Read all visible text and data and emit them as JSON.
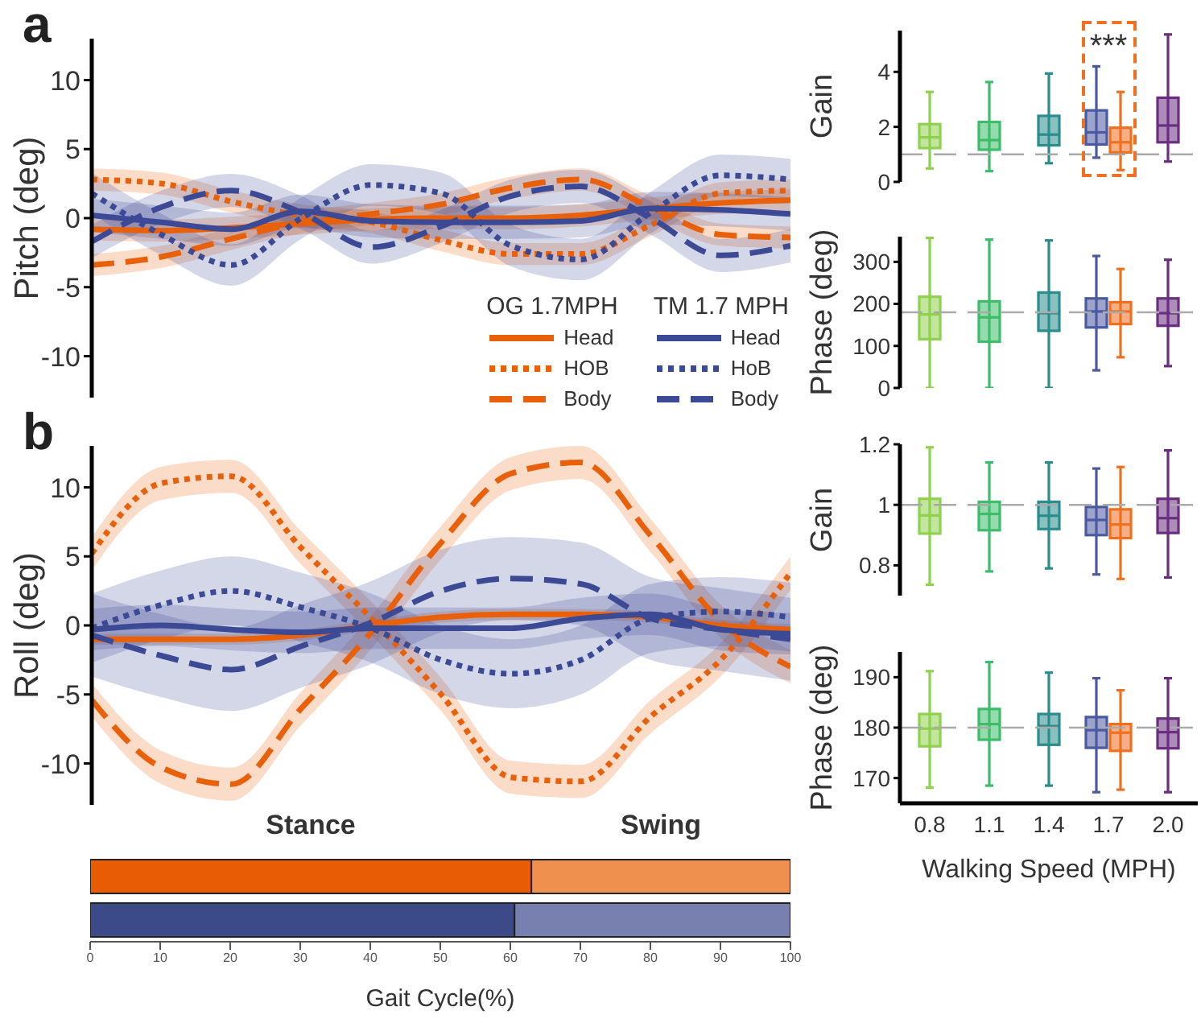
{
  "chart_data": [
    {
      "type": "line",
      "ylabel": "Pitch (deg)",
      "annotations": [
        "a"
      ],
      "x": [
        0,
        10,
        20,
        30,
        40,
        50,
        60,
        70,
        80,
        90,
        100
      ],
      "xlim": [
        0,
        100
      ],
      "ylim": [
        -13,
        13
      ],
      "yticks": [
        -10,
        -5,
        0,
        5,
        10
      ],
      "tick_labels": "y",
      "legend": "bottom right",
      "legend_title": [
        "OG 1.7MPH",
        "TM 1.7 MPH"
      ],
      "series": [
        {
          "name": "Head",
          "color": "#e8600a",
          "line_style": "solid",
          "values": [
            -0.8,
            -0.9,
            -0.7,
            -0.4,
            -0.1,
            0,
            0,
            0.2,
            0.7,
            1.1,
            1.3
          ],
          "lower": [
            -1.6,
            -1.7,
            -1.5,
            -1.2,
            -0.9,
            -0.8,
            -0.8,
            -0.6,
            -0.1,
            0.3,
            0.5
          ],
          "upper": [
            0,
            -0.1,
            0.1,
            0.4,
            0.7,
            0.8,
            0.8,
            1.0,
            1.5,
            1.9,
            2.1
          ]
        },
        {
          "name": "HOB",
          "color": "#e8600a",
          "line_style": "dotted",
          "values": [
            2.8,
            2.5,
            1.2,
            0.2,
            -0.3,
            -1.6,
            -2.6,
            -2.6,
            -0.5,
            1.8,
            2.0
          ],
          "lower": [
            2.0,
            1.7,
            0.4,
            -0.6,
            -1.1,
            -2.4,
            -3.4,
            -3.4,
            -1.3,
            1.0,
            1.2
          ],
          "upper": [
            3.6,
            3.3,
            2.0,
            1.0,
            0.5,
            -0.8,
            -1.8,
            -1.8,
            0.3,
            2.6,
            2.8
          ]
        },
        {
          "name": "Body",
          "color": "#e8600a",
          "line_style": "dashed",
          "values": [
            -3.4,
            -2.8,
            -1.5,
            -0.3,
            0.3,
            1.0,
            2.2,
            2.8,
            0.8,
            -1.2,
            -1.4
          ],
          "lower": [
            -4.2,
            -3.6,
            -2.3,
            -1.1,
            -0.5,
            0.2,
            1.4,
            2.0,
            0,
            -2.0,
            -2.2
          ],
          "upper": [
            -2.6,
            -2.0,
            -0.7,
            0.5,
            1.1,
            1.8,
            3.0,
            3.6,
            1.6,
            -0.4,
            -0.6
          ]
        },
        {
          "name": "Head",
          "color": "#3c4a96",
          "line_style": "solid",
          "values": [
            0.2,
            -0.3,
            -0.8,
            0.5,
            -0.2,
            -0.3,
            -0.3,
            -0.2,
            0.7,
            0.6,
            0.3
          ],
          "lower": [
            -1.0,
            -1.5,
            -2.0,
            -0.7,
            -1.4,
            -1.5,
            -1.5,
            -1.4,
            -0.5,
            -0.6,
            -0.9
          ],
          "upper": [
            1.4,
            0.9,
            0.4,
            1.7,
            1.0,
            0.9,
            0.9,
            1.0,
            1.9,
            1.8,
            1.5
          ]
        },
        {
          "name": "HoB",
          "color": "#3c4a96",
          "line_style": "dotted",
          "values": [
            1.8,
            -1.2,
            -3.4,
            0,
            2.4,
            1.8,
            -2.0,
            -3.0,
            0.4,
            3.1,
            2.8
          ],
          "lower": [
            0.3,
            -2.7,
            -4.9,
            -1.5,
            0.9,
            0.3,
            -3.5,
            -4.5,
            -1.1,
            1.6,
            1.3
          ],
          "upper": [
            3.3,
            0.3,
            -1.9,
            1.5,
            3.9,
            3.3,
            -0.5,
            -1.5,
            1.9,
            4.6,
            4.3
          ]
        },
        {
          "name": "Body",
          "color": "#3c4a96",
          "line_style": "dashed",
          "values": [
            -1.7,
            0.8,
            2.0,
            0.4,
            -2.1,
            -0.6,
            1.6,
            2.3,
            0,
            -2.7,
            -2.0
          ],
          "lower": [
            -2.9,
            -0.4,
            0.8,
            -0.8,
            -3.3,
            -1.8,
            0.4,
            1.1,
            -1.2,
            -3.9,
            -3.2
          ],
          "upper": [
            -0.5,
            2.0,
            3.2,
            1.6,
            -0.9,
            0.6,
            2.8,
            3.5,
            1.2,
            -1.5,
            -0.8
          ]
        }
      ]
    },
    {
      "type": "line",
      "ylabel": "Roll (deg)",
      "annotations": [
        "b"
      ],
      "x": [
        0,
        10,
        20,
        30,
        40,
        50,
        60,
        70,
        80,
        90,
        100
      ],
      "xlim": [
        0,
        100
      ],
      "ylim": [
        -13,
        13
      ],
      "yticks": [
        -10,
        -5,
        0,
        5,
        10
      ],
      "tick_labels": "y",
      "series": [
        {
          "color": "#e8600a",
          "line_style": "solid",
          "values": [
            -1.0,
            -1.0,
            -1.0,
            -0.7,
            0,
            0.6,
            0.8,
            0.8,
            0.6,
            0,
            -0.3
          ],
          "lower": [
            -1.4,
            -1.4,
            -1.4,
            -1.1,
            -0.4,
            0.2,
            0.4,
            0.4,
            0.2,
            -0.4,
            -0.7
          ],
          "upper": [
            -0.6,
            -0.6,
            -0.6,
            -0.3,
            0.4,
            1.0,
            1.2,
            1.2,
            1.0,
            0.4,
            0.1
          ]
        },
        {
          "color": "#e8600a",
          "line_style": "dotted",
          "values": [
            5.2,
            10.3,
            10.8,
            5.6,
            0.5,
            -5.0,
            -11.0,
            -11.3,
            -6.6,
            -2.5,
            3.8
          ],
          "lower": [
            4.0,
            9.1,
            9.6,
            4.4,
            -0.7,
            -6.2,
            -12.2,
            -12.5,
            -7.8,
            -3.7,
            2.6
          ],
          "upper": [
            6.4,
            11.5,
            12.0,
            6.8,
            1.7,
            -3.8,
            -9.8,
            -10.1,
            -5.4,
            -1.3,
            5.0
          ]
        },
        {
          "color": "#e8600a",
          "line_style": "dashed",
          "values": [
            -5.4,
            -10.3,
            -11.5,
            -6.0,
            -0.5,
            6.0,
            11.0,
            11.8,
            6.5,
            0.3,
            -3.0
          ],
          "lower": [
            -6.6,
            -11.5,
            -12.7,
            -7.2,
            -1.7,
            4.8,
            9.8,
            10.6,
            5.3,
            -0.9,
            -4.2
          ],
          "upper": [
            -4.2,
            -9.1,
            -10.3,
            -4.8,
            0.7,
            7.2,
            12.2,
            13.0,
            7.7,
            1.5,
            -1.8
          ]
        },
        {
          "color": "#3c4a96",
          "line_style": "solid",
          "values": [
            -0.3,
            0,
            -0.3,
            -0.5,
            -0.2,
            -0.2,
            -0.2,
            0.5,
            0.8,
            -0.3,
            -0.6
          ],
          "lower": [
            -1.8,
            -1.5,
            -1.8,
            -2.0,
            -1.7,
            -1.7,
            -1.7,
            -1.0,
            -0.7,
            -1.8,
            -2.1
          ],
          "upper": [
            1.2,
            1.5,
            1.2,
            1.0,
            1.3,
            1.3,
            1.3,
            2.0,
            2.3,
            1.2,
            0.9
          ]
        },
        {
          "color": "#3c4a96",
          "line_style": "dotted",
          "values": [
            -0.2,
            1.5,
            2.5,
            1.3,
            -0.2,
            -2.5,
            -3.5,
            -2.5,
            0.5,
            1.0,
            0.6
          ],
          "lower": [
            -2.7,
            -1.0,
            0,
            -1.2,
            -2.7,
            -5.0,
            -6.0,
            -5.0,
            -2.0,
            -1.5,
            -1.9
          ],
          "upper": [
            2.3,
            4.0,
            5.0,
            3.8,
            2.3,
            0,
            -1.0,
            0,
            3.0,
            3.5,
            3.1
          ]
        },
        {
          "color": "#3c4a96",
          "line_style": "dashed",
          "values": [
            -0.7,
            -2.2,
            -3.2,
            -1.5,
            0.2,
            2.5,
            3.4,
            3.0,
            0.5,
            -0.3,
            -1.0
          ],
          "lower": [
            -3.7,
            -5.2,
            -6.2,
            -4.5,
            -2.8,
            -0.5,
            0.4,
            0,
            -2.5,
            -3.3,
            -4.0
          ],
          "upper": [
            2.3,
            0.8,
            -0.2,
            1.5,
            3.2,
            5.5,
            6.4,
            6.0,
            3.5,
            2.7,
            2.0
          ]
        }
      ]
    },
    {
      "type": "bar",
      "orientation": "horizontal",
      "stacked": true,
      "categories": [
        null,
        null
      ],
      "xlabel": "Gait Cycle(%)",
      "annotations": [
        "Stance",
        "Swing"
      ],
      "xlim": [
        0,
        100
      ],
      "xticks": [
        0,
        10,
        20,
        30,
        40,
        50,
        60,
        70,
        80,
        90,
        100
      ],
      "tick_labels": "x",
      "series": [
        {
          "colors": [
            "#e85d04",
            "#3d4a8a"
          ],
          "values": [
            63,
            60.6
          ]
        },
        {
          "colors": [
            "#f0904f",
            "#7880b0"
          ],
          "values": [
            37,
            39.4
          ]
        }
      ]
    },
    {
      "type": "box",
      "categories": [
        "0.8",
        "1.1",
        "1.4",
        "1.7",
        "2.0"
      ],
      "ylabel": "Gain",
      "ylim": [
        0,
        5.5
      ],
      "yticks": [
        0,
        2,
        4
      ],
      "tick_labels": "y",
      "ref_lines": [
        {
          "axis": "y",
          "value": 1,
          "color": "#aaaaaa",
          "line_style": "dashed"
        }
      ],
      "annotations": [
        "***"
      ],
      "series": [
        {
          "color": "#4a5aa0",
          "colors": [
            "#8fd14f",
            "#3dbd6a",
            "#2a8c8c",
            "#4a5aa0",
            "#6a2e80"
          ],
          "boxes": [
            {
              "low": 0.49,
              "q1": 1.23,
              "median": 1.62,
              "q3": 2.1,
              "high": 3.27
            },
            {
              "low": 0.39,
              "q1": 1.17,
              "median": 1.52,
              "q3": 2.18,
              "high": 3.63
            },
            {
              "low": 0.68,
              "q1": 1.33,
              "median": 1.72,
              "q3": 2.4,
              "high": 3.94
            },
            {
              "low": 0.88,
              "q1": 1.36,
              "median": 1.8,
              "q3": 2.6,
              "high": 4.2
            },
            {
              "low": 0.74,
              "q1": 1.44,
              "median": 2.05,
              "q3": 3.06,
              "high": 5.36
            }
          ]
        },
        {
          "color": "#f07020",
          "boxes": [
            null,
            null,
            null,
            {
              "low": 0.43,
              "q1": 1.07,
              "median": 1.44,
              "q3": 1.97,
              "high": 3.27
            },
            null
          ]
        }
      ]
    },
    {
      "type": "box",
      "categories": [
        "0.8",
        "1.1",
        "1.4",
        "1.7",
        "2.0"
      ],
      "ylabel": "Phase (deg)",
      "ylim": [
        0,
        360
      ],
      "yticks": [
        0,
        100,
        200,
        300
      ],
      "tick_labels": "y",
      "ref_lines": [
        {
          "axis": "y",
          "value": 180,
          "color": "#aaaaaa",
          "line_style": "dashed"
        }
      ],
      "series": [
        {
          "color": "#4a5aa0",
          "colors": [
            "#8fd14f",
            "#3dbd6a",
            "#2a8c8c",
            "#4a5aa0",
            "#6a2e80"
          ],
          "boxes": [
            {
              "low": 0,
              "q1": 116,
              "median": 175,
              "q3": 217,
              "high": 357
            },
            {
              "low": 0,
              "q1": 110,
              "median": 168,
              "q3": 206,
              "high": 353
            },
            {
              "low": 0,
              "q1": 136,
              "median": 178,
              "q3": 227,
              "high": 351
            },
            {
              "low": 42,
              "q1": 144,
              "median": 182,
              "q3": 213,
              "high": 314
            },
            {
              "low": 52,
              "q1": 148,
              "median": 178,
              "q3": 213,
              "high": 305
            }
          ]
        },
        {
          "color": "#f07020",
          "boxes": [
            null,
            null,
            null,
            {
              "low": 73,
              "q1": 152,
              "median": 182,
              "q3": 204,
              "high": 283
            },
            null
          ]
        }
      ]
    },
    {
      "type": "box",
      "categories": [
        "0.8",
        "1.1",
        "1.4",
        "1.7",
        "2.0"
      ],
      "ylabel": "Gain",
      "ylim": [
        0.7,
        1.2
      ],
      "yticks": [
        0.8,
        1,
        1.2
      ],
      "tick_labels": "y",
      "ref_lines": [
        {
          "axis": "y",
          "value": 1,
          "color": "#aaaaaa",
          "line_style": "dashed"
        }
      ],
      "series": [
        {
          "color": "#4a5aa0",
          "colors": [
            "#8fd14f",
            "#3dbd6a",
            "#2a8c8c",
            "#4a5aa0",
            "#6a2e80"
          ],
          "boxes": [
            {
              "low": 0.736,
              "q1": 0.905,
              "median": 0.965,
              "q3": 1.02,
              "high": 1.19
            },
            {
              "low": 0.78,
              "q1": 0.916,
              "median": 0.97,
              "q3": 1.01,
              "high": 1.14
            },
            {
              "low": 0.79,
              "q1": 0.92,
              "median": 0.964,
              "q3": 1.01,
              "high": 1.14
            },
            {
              "low": 0.77,
              "q1": 0.9,
              "median": 0.95,
              "q3": 0.993,
              "high": 1.12
            },
            {
              "low": 0.76,
              "q1": 0.907,
              "median": 0.956,
              "q3": 1.02,
              "high": 1.18
            }
          ]
        },
        {
          "color": "#f07020",
          "boxes": [
            null,
            null,
            null,
            {
              "low": 0.755,
              "q1": 0.89,
              "median": 0.935,
              "q3": 0.985,
              "high": 1.125
            },
            null
          ]
        }
      ]
    },
    {
      "type": "box",
      "categories": [
        "0.8",
        "1.1",
        "1.4",
        "1.7",
        "2.0"
      ],
      "ylabel": "Phase (deg)",
      "xlabel": "Walking Speed (MPH)",
      "ylim": [
        165,
        195
      ],
      "yticks": [
        170,
        180,
        190
      ],
      "ref_lines": [
        {
          "axis": "y",
          "value": 180,
          "color": "#aaaaaa",
          "line_style": "dashed"
        }
      ],
      "series": [
        {
          "color": "#4a5aa0",
          "colors": [
            "#8fd14f",
            "#3dbd6a",
            "#2a8c8c",
            "#4a5aa0",
            "#6a2e80"
          ],
          "boxes": [
            {
              "low": 168.1,
              "q1": 176.3,
              "median": 179.8,
              "q3": 182.7,
              "high": 191.2
            },
            {
              "low": 168.5,
              "q1": 177.6,
              "median": 180.7,
              "q3": 183.7,
              "high": 193
            },
            {
              "low": 168.5,
              "q1": 176.6,
              "median": 180.3,
              "q3": 182.7,
              "high": 190.9
            },
            {
              "low": 167.2,
              "q1": 176,
              "median": 179.5,
              "q3": 182.1,
              "high": 189.8
            },
            {
              "low": 167.2,
              "q1": 175.9,
              "median": 179.1,
              "q3": 181.8,
              "high": 189.8
            }
          ]
        },
        {
          "color": "#f07020",
          "boxes": [
            null,
            null,
            null,
            {
              "low": 167.7,
              "q1": 175.4,
              "median": 179,
              "q3": 180.7,
              "high": 187.4
            },
            null
          ]
        }
      ]
    }
  ]
}
